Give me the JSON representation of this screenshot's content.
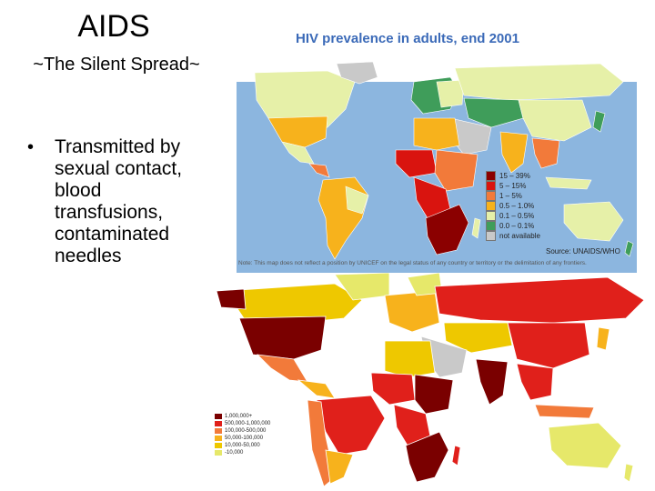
{
  "slide": {
    "title": "AIDS",
    "subtitle": "~The Silent Spread~",
    "bullets": [
      {
        "marker": "•",
        "text": "Transmitted by sexual contact, blood transfusions, contaminated needles"
      }
    ]
  },
  "map_top": {
    "title": "HIV prevalence in adults, end 2001",
    "legend": [
      {
        "label": "15 – 39%",
        "color": "#8b0000"
      },
      {
        "label": "5 – 15%",
        "color": "#d9140f"
      },
      {
        "label": "1 – 5%",
        "color": "#f27a3a"
      },
      {
        "label": "0.5 – 1.0%",
        "color": "#f7b21c"
      },
      {
        "label": "0.1 – 0.5%",
        "color": "#e6f0a8"
      },
      {
        "label": "0.0 – 0.1%",
        "color": "#3f9d5a"
      },
      {
        "label": "not available",
        "color": "#c9c9c9"
      }
    ],
    "source": "Source: UNAIDS/WHO",
    "note": "Note: This map does not reflect a position by UNICEF on the legal status of any country or territory or the delimitation of any frontiers."
  },
  "map_bottom": {
    "legend": [
      {
        "label": "1,000,000+",
        "color": "#7a0000"
      },
      {
        "label": "500,000-1,000,000",
        "color": "#e0201b"
      },
      {
        "label": "100,000-500,000",
        "color": "#f27a3a"
      },
      {
        "label": "50,000-100,000",
        "color": "#f7b21c"
      },
      {
        "label": "10,000-50,000",
        "color": "#eec800"
      },
      {
        "label": "-10,000",
        "color": "#e6e86a"
      }
    ]
  },
  "colors": {
    "ocean": "#8cb6df",
    "title_blue": "#3b6ab8",
    "na_gray": "#c9c9c9"
  }
}
